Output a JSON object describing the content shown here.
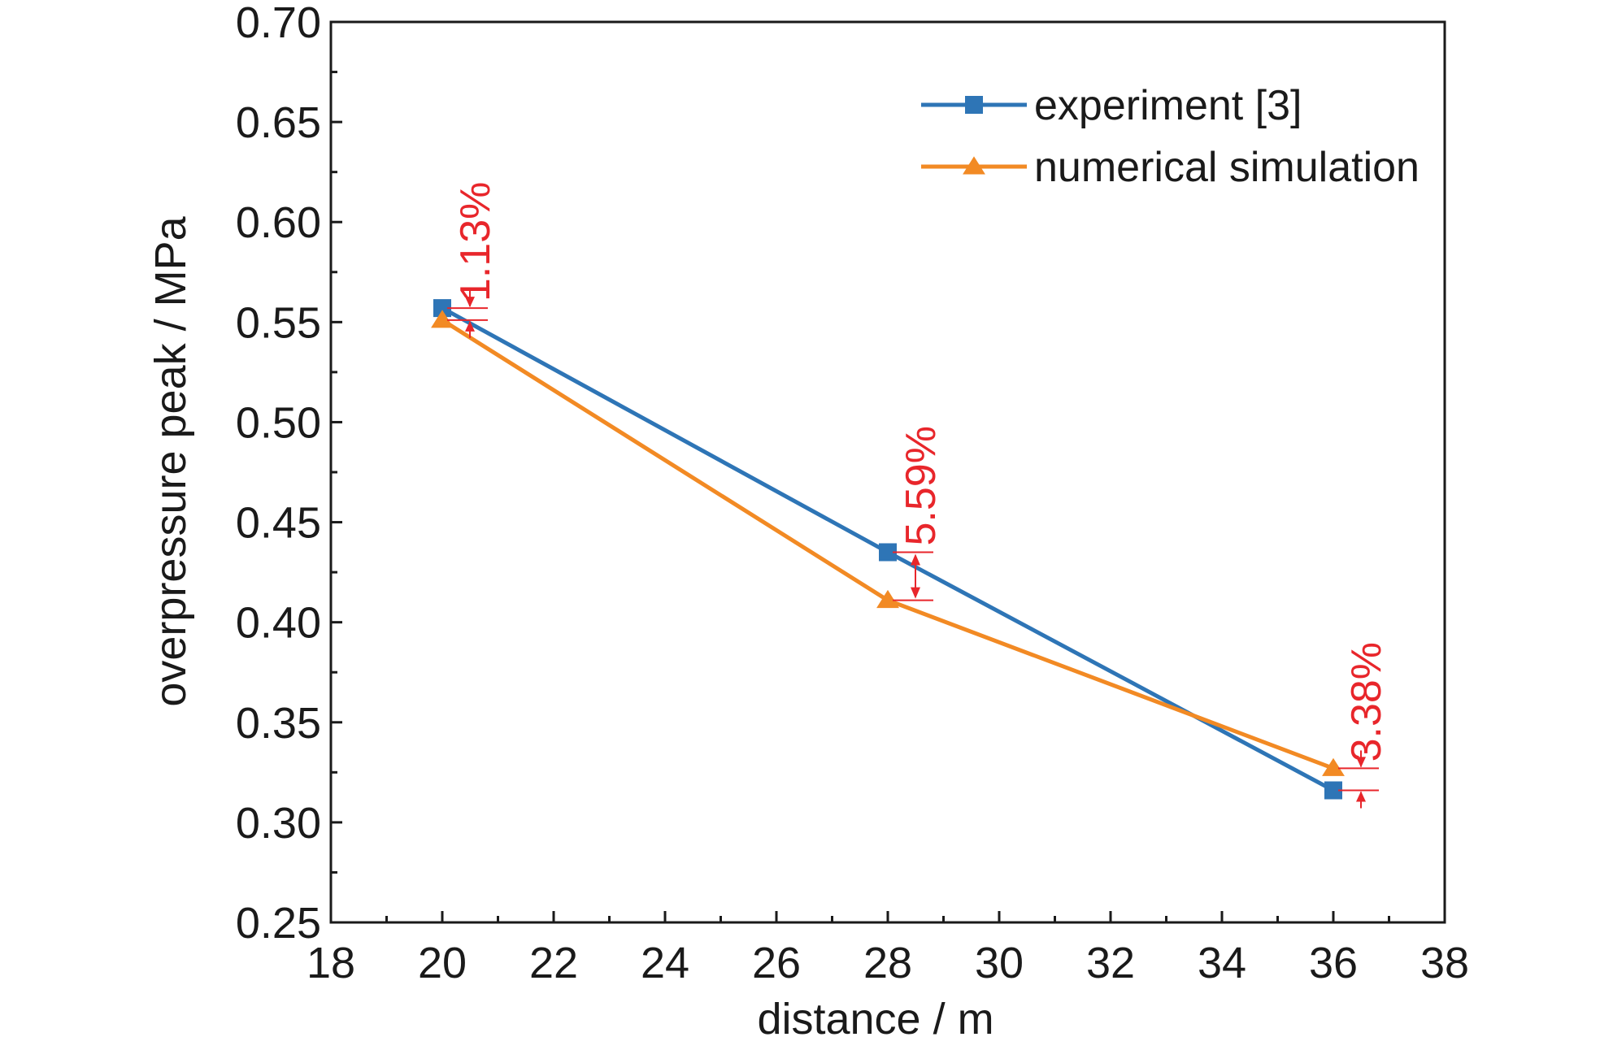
{
  "chart_data": {
    "type": "line",
    "xlabel": "distance / m",
    "ylabel": "overpressure peak / MPa",
    "xlim": [
      18,
      38
    ],
    "ylim": [
      0.25,
      0.7
    ],
    "x_ticks": [
      "18",
      "20",
      "22",
      "24",
      "26",
      "28",
      "30",
      "32",
      "34",
      "36",
      "38"
    ],
    "y_ticks": [
      "0.25",
      "0.30",
      "0.35",
      "0.40",
      "0.45",
      "0.50",
      "0.55",
      "0.60",
      "0.65",
      "0.70"
    ],
    "grid": false,
    "legend_position": "top-right",
    "series": [
      {
        "name": "experiment [3]",
        "color": "#2e75b6",
        "marker": "square",
        "x": [
          20,
          28,
          36
        ],
        "y": [
          0.557,
          0.435,
          0.316
        ]
      },
      {
        "name": "numerical simulation",
        "color": "#f28a24",
        "marker": "triangle",
        "x": [
          20,
          28,
          36
        ],
        "y": [
          0.551,
          0.411,
          0.327
        ]
      }
    ],
    "annotations": [
      {
        "text": "1.13%",
        "x": 20,
        "y_top": 0.557,
        "y_bottom": 0.551,
        "color": "#e8262b"
      },
      {
        "text": "5.59%",
        "x": 28,
        "y_top": 0.435,
        "y_bottom": 0.411,
        "color": "#e8262b"
      },
      {
        "text": "3.38%",
        "x": 36,
        "y_top": 0.327,
        "y_bottom": 0.316,
        "color": "#e8262b"
      }
    ]
  }
}
